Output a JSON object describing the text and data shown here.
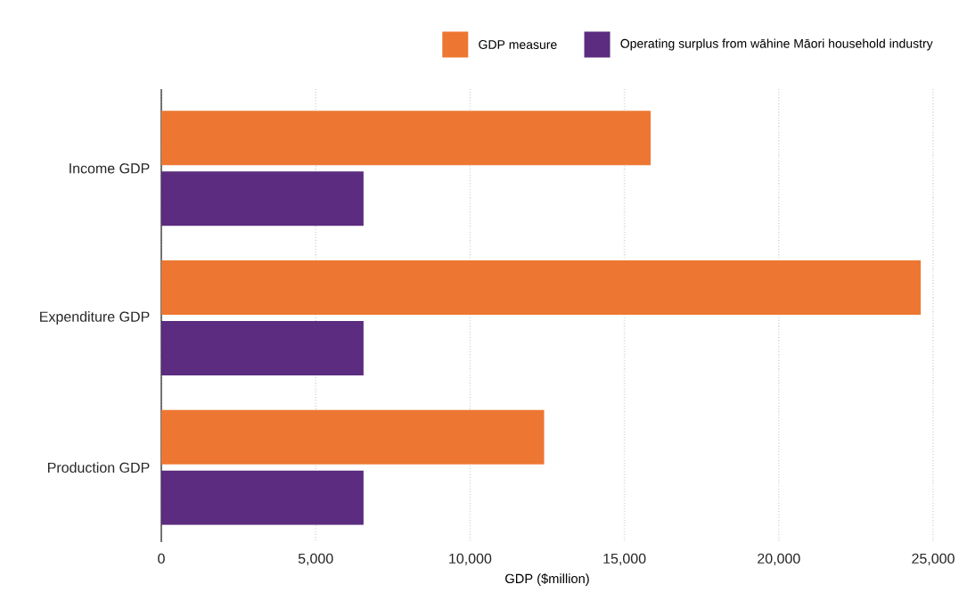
{
  "chart_data": {
    "type": "bar",
    "orientation": "horizontal",
    "xlabel": "GDP ($million)",
    "categories": [
      "Income GDP",
      "Expenditure GDP",
      "Production GDP"
    ],
    "series": [
      {
        "name": "GDP measure",
        "color": "#ed7732",
        "values": [
          15850,
          24600,
          12400
        ]
      },
      {
        "name": "Operating surplus from wāhine Māori household industry",
        "color": "#5b2c7f",
        "values": [
          6550,
          6550,
          6550
        ]
      }
    ],
    "xlim": [
      0,
      25000
    ],
    "xticks": [
      0,
      {
        "value": 5000,
        "label": "5,000"
      },
      {
        "value": 10000,
        "label": "10,000"
      },
      {
        "value": 15000,
        "label": "15,000"
      },
      {
        "value": 20000,
        "label": "20,000"
      },
      {
        "value": 25000,
        "label": "25,000"
      }
    ],
    "grid": "x",
    "legend": "top right"
  }
}
